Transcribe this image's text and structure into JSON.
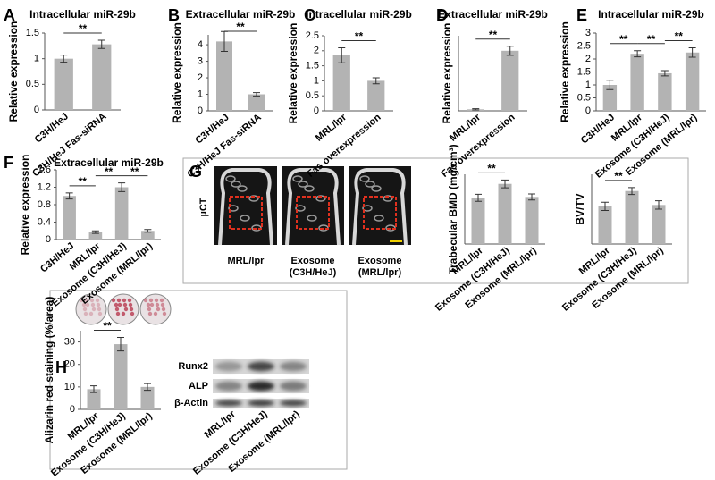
{
  "figure": {
    "panels": [
      "A",
      "B",
      "C",
      "D",
      "E",
      "F",
      "G",
      "H"
    ],
    "ct": {
      "label": "µCT",
      "images": [
        [
          "MRL/lpr"
        ],
        [
          "Exosome",
          "(C3H/HeJ)"
        ],
        [
          "Exosome",
          "(MRL/lpr)"
        ]
      ]
    },
    "blot": {
      "bands": [
        "Runx2",
        "ALP",
        "β-Actin"
      ],
      "lanes": [
        "MRL/lpr",
        "Exosome (C3H/HeJ)",
        "Exosome (MRL/lpr)"
      ]
    }
  },
  "chart_data": [
    {
      "type": "bar",
      "title": "Intracellular miR-29b",
      "y_label": "Relative expression",
      "categories": [
        "C3H/HeJ",
        "C3H/HeJ Fas-siRNA"
      ],
      "values": [
        1.0,
        1.28
      ],
      "errors": [
        0.07,
        0.08
      ],
      "color": "#b3b3b3",
      "ylim": [
        0,
        1.5
      ],
      "yticks": [
        0,
        0.5,
        1,
        1.5
      ],
      "significance": [
        "**"
      ]
    },
    {
      "type": "bar",
      "title": "Extracellular miR-29b",
      "y_label": "Relative expression",
      "categories": [
        "C3H/HeJ",
        "C3H/HeJ Fas-siRNA"
      ],
      "values": [
        4.2,
        1.0
      ],
      "errors": [
        0.6,
        0.1
      ],
      "color": "#b3b3b3",
      "ylim": [
        0,
        4.6
      ],
      "yticks": [
        0,
        1,
        2,
        3,
        4
      ],
      "significance": [
        "**"
      ]
    },
    {
      "type": "bar",
      "title": "Intracellular miR-29b",
      "y_label": "Relative expression",
      "categories": [
        "MRL/lpr",
        "Fas overexpression"
      ],
      "values": [
        1.85,
        1.0
      ],
      "errors": [
        0.25,
        0.1
      ],
      "color": "#b3b3b3",
      "ylim": [
        0,
        2.5
      ],
      "yticks": [
        0,
        0.5,
        1,
        1.5,
        2,
        2.5
      ],
      "significance": [
        "**"
      ]
    },
    {
      "type": "bar",
      "title": "Extracellular miR-29b",
      "y_label": "Relative expression",
      "categories": [
        "MRL/lpr",
        "Fas overexpression"
      ],
      "values": [
        0.05,
        2.0
      ],
      "errors": [
        0.02,
        0.15
      ],
      "color": "#b3b3b3",
      "ylim": [
        0,
        2.5
      ],
      "yticks": [],
      "significance": [
        "**"
      ]
    },
    {
      "type": "bar",
      "title": "Intracellular miR-29b",
      "y_label": "Relative expression",
      "categories": [
        "C3H/HeJ",
        "MRL/lpr",
        "Exosome (C3H/HeJ)",
        "Exosome (MRL/lpr)"
      ],
      "values": [
        1.0,
        2.2,
        1.45,
        2.25
      ],
      "errors": [
        0.18,
        0.12,
        0.1,
        0.18
      ],
      "color": "#b3b3b3",
      "ylim": [
        0,
        3
      ],
      "yticks": [
        0,
        0.5,
        1,
        1.5,
        2,
        2.5,
        3
      ],
      "significance": [
        "**",
        "**",
        "**"
      ]
    },
    {
      "type": "bar",
      "title": "Extracellular miR-29b",
      "y_label": "Relative expression",
      "categories": [
        "C3H/HeJ",
        "MRL/lpr",
        "Exosome (C3H/HeJ)",
        "Exosome (MRL/lpr)"
      ],
      "values": [
        1.0,
        0.17,
        1.2,
        0.2
      ],
      "errors": [
        0.07,
        0.03,
        0.1,
        0.03
      ],
      "color": "#b3b3b3",
      "ylim": [
        0,
        1.6
      ],
      "yticks": [
        0,
        0.4,
        0.8,
        1.2,
        1.6
      ],
      "significance": [
        "**",
        "**",
        "**"
      ]
    },
    {
      "type": "bar",
      "y_label": "Trabecular BMD (mg/cm³)",
      "categories": [
        "MRL/lpr",
        "Exosome (C3H/HeJ)",
        "Exosome (MRL/lpr)"
      ],
      "values": [
        530,
        690,
        540
      ],
      "errors": [
        40,
        45,
        35
      ],
      "color": "#b3b3b3",
      "ylim": [
        0,
        800
      ],
      "yticks": [],
      "significance": [
        "**",
        null
      ]
    },
    {
      "type": "bar",
      "y_label": "BV/TV",
      "categories": [
        "MRL/lpr",
        "Exosome (C3H/HeJ)",
        "Exosome (MRL/lpr)"
      ],
      "values": [
        0.27,
        0.38,
        0.28
      ],
      "errors": [
        0.03,
        0.025,
        0.03
      ],
      "color": "#b3b3b3",
      "ylim": [
        0,
        0.5
      ],
      "yticks": [],
      "significance": [
        "**",
        null
      ]
    },
    {
      "type": "bar",
      "y_label": "Alizarin red staining (%/area)",
      "categories": [
        "MRL/lpr",
        "Exosome (C3H/HeJ)",
        "Exosome (MRL/lpr)"
      ],
      "values": [
        9,
        29,
        10
      ],
      "errors": [
        1.5,
        3,
        1.5
      ],
      "color": "#b3b3b3",
      "ylim": [
        0,
        35
      ],
      "yticks": [
        0,
        10,
        20,
        30
      ],
      "significance": [
        "**",
        null
      ]
    }
  ]
}
